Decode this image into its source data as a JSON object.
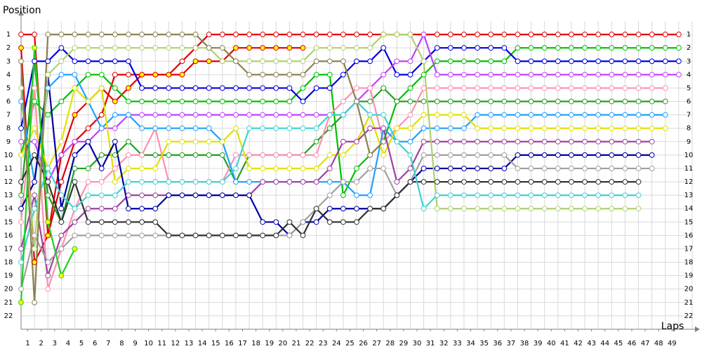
{
  "chart_data": {
    "type": "lap",
    "title": "Position",
    "x_label": "Laps",
    "xlim": [
      0,
      50
    ],
    "ylim": [
      23,
      0
    ],
    "grid": true,
    "x": [
      0,
      1,
      2,
      3,
      4,
      5,
      6,
      7,
      8,
      9,
      10,
      11,
      12,
      13,
      14,
      15,
      16,
      17,
      18,
      19,
      20,
      21,
      22,
      23,
      24,
      25,
      26,
      27,
      28,
      29,
      30,
      31,
      32,
      33,
      34,
      35,
      36,
      37,
      38,
      39,
      40,
      41,
      42,
      43,
      44,
      45,
      46,
      47,
      48,
      49
    ],
    "xticks": [
      {
        "value": 0.5,
        "label": "1"
      },
      {
        "value": 1.5,
        "label": "2"
      },
      {
        "value": 2.5,
        "label": "3"
      },
      {
        "value": 3.5,
        "label": "4"
      },
      {
        "value": 4.5,
        "label": "5"
      },
      {
        "value": 5.5,
        "label": "6"
      },
      {
        "value": 6.5,
        "label": "7"
      },
      {
        "value": 7.5,
        "label": "8"
      },
      {
        "value": 8.5,
        "label": "9"
      },
      {
        "value": 9.5,
        "label": "10"
      },
      {
        "value": 10.5,
        "label": "11"
      },
      {
        "value": 11.5,
        "label": "12"
      },
      {
        "value": 12.5,
        "label": "13"
      },
      {
        "value": 13.5,
        "label": "14"
      },
      {
        "value": 14.5,
        "label": "15"
      },
      {
        "value": 15.5,
        "label": "16"
      },
      {
        "value": 16.5,
        "label": "17"
      },
      {
        "value": 17.5,
        "label": "18"
      },
      {
        "value": 18.5,
        "label": "19"
      },
      {
        "value": 19.5,
        "label": "20"
      },
      {
        "value": 20.5,
        "label": "21"
      },
      {
        "value": 21.5,
        "label": "22"
      },
      {
        "value": 22.5,
        "label": "23"
      },
      {
        "value": 23.5,
        "label": "24"
      },
      {
        "value": 24.5,
        "label": "25"
      },
      {
        "value": 25.5,
        "label": "26"
      },
      {
        "value": 26.5,
        "label": "27"
      },
      {
        "value": 27.5,
        "label": "28"
      },
      {
        "value": 28.5,
        "label": "29"
      },
      {
        "value": 29.5,
        "label": "30"
      },
      {
        "value": 30.5,
        "label": "31"
      },
      {
        "value": 31.5,
        "label": "32"
      },
      {
        "value": 32.5,
        "label": "33"
      },
      {
        "value": 33.5,
        "label": "34"
      },
      {
        "value": 34.5,
        "label": "35"
      },
      {
        "value": 35.5,
        "label": "36"
      },
      {
        "value": 36.5,
        "label": "37"
      },
      {
        "value": 37.5,
        "label": "38"
      },
      {
        "value": 38.5,
        "label": "39"
      },
      {
        "value": 39.5,
        "label": "40"
      },
      {
        "value": 40.5,
        "label": "41"
      },
      {
        "value": 41.5,
        "label": "42"
      },
      {
        "value": 42.5,
        "label": "43"
      },
      {
        "value": 43.5,
        "label": "44"
      },
      {
        "value": 44.5,
        "label": "45"
      },
      {
        "value": 45.5,
        "label": "46"
      },
      {
        "value": 46.5,
        "label": "47"
      },
      {
        "value": 47.5,
        "label": "48"
      },
      {
        "value": 48.5,
        "label": "49"
      }
    ],
    "yticks": [
      1,
      2,
      3,
      4,
      5,
      6,
      7,
      8,
      9,
      10,
      11,
      12,
      13,
      14,
      15,
      16,
      17,
      18,
      19,
      20,
      21,
      22
    ],
    "series": [
      {
        "color": "#e00000",
        "marker_fill": "#ffffff",
        "values": [
          1,
          1,
          16,
          12,
          9,
          8,
          7,
          4,
          4,
          4,
          4,
          4,
          3,
          2,
          1,
          1,
          1,
          1,
          1,
          1,
          1,
          1,
          1,
          1,
          1,
          1,
          1,
          1,
          1,
          1,
          1,
          1,
          1,
          1,
          1,
          1,
          1,
          1,
          1,
          1,
          1,
          1,
          1,
          1,
          1,
          1,
          1,
          1,
          1,
          1
        ]
      },
      {
        "color": "#e00000",
        "marker_fill": "#ffff00",
        "values": [
          2,
          18,
          16,
          10,
          7,
          6,
          5,
          6,
          5,
          4,
          4,
          4,
          4,
          3,
          3,
          3,
          2,
          2,
          2,
          2,
          2,
          2,
          null,
          null,
          null,
          null,
          null,
          null,
          null,
          null,
          null,
          null,
          null,
          null,
          null,
          null,
          null,
          null,
          null,
          null,
          null,
          null,
          null,
          null,
          null,
          null,
          null,
          null,
          null,
          null
        ]
      },
      {
        "color": "#00c000",
        "marker_fill": "#ffffff",
        "values": [
          10,
          6,
          7,
          6,
          5,
          4,
          4,
          5,
          6,
          6,
          6,
          6,
          6,
          6,
          6,
          6,
          6,
          6,
          6,
          6,
          6,
          5,
          4,
          4,
          13,
          11,
          10,
          9,
          6,
          5,
          4,
          3,
          3,
          3,
          3,
          3,
          3,
          2,
          2,
          2,
          2,
          2,
          2,
          2,
          2,
          2,
          2,
          2,
          2,
          2
        ]
      },
      {
        "color": "#20a020",
        "marker_fill": "#ffffff",
        "values": [
          13,
          3,
          13,
          15,
          11,
          11,
          10,
          10,
          9,
          10,
          10,
          10,
          10,
          10,
          10,
          10,
          12,
          10,
          10,
          10,
          10,
          10,
          9,
          8,
          7,
          6,
          6,
          5,
          6,
          6,
          6,
          6,
          6,
          6,
          6,
          6,
          6,
          6,
          6,
          6,
          6,
          6,
          6,
          6,
          6,
          6,
          6,
          6,
          6,
          null
        ]
      },
      {
        "color": "#0000e0",
        "marker_fill": "#ffffff",
        "values": [
          8,
          3,
          3,
          2,
          3,
          3,
          3,
          3,
          3,
          5,
          5,
          5,
          5,
          5,
          5,
          5,
          5,
          5,
          5,
          5,
          5,
          6,
          5,
          5,
          4,
          3,
          3,
          2,
          4,
          4,
          3,
          2,
          2,
          2,
          2,
          2,
          2,
          3,
          3,
          3,
          3,
          3,
          3,
          3,
          3,
          3,
          3,
          3,
          3,
          3
        ]
      },
      {
        "color": "#c040ff",
        "marker_fill": "#ffffff",
        "values": [
          9,
          9,
          12,
          10,
          9,
          9,
          8,
          8,
          7,
          7,
          7,
          7,
          7,
          7,
          7,
          7,
          7,
          7,
          7,
          7,
          7,
          7,
          7,
          7,
          7,
          6,
          5,
          4,
          3,
          3,
          1,
          4,
          4,
          4,
          4,
          4,
          4,
          4,
          4,
          4,
          4,
          4,
          4,
          4,
          4,
          4,
          4,
          4,
          4,
          4
        ]
      },
      {
        "color": "#ff90b0",
        "marker_fill": "#ffffff",
        "values": [
          15,
          5,
          20,
          17,
          14,
          12,
          12,
          11,
          10,
          10,
          8,
          12,
          12,
          12,
          12,
          12,
          10,
          10,
          10,
          10,
          10,
          10,
          10,
          7,
          6,
          5,
          5,
          9,
          8,
          7,
          5,
          5,
          5,
          5,
          5,
          5,
          5,
          5,
          5,
          5,
          5,
          5,
          5,
          5,
          5,
          5,
          5,
          5,
          5,
          null
        ]
      },
      {
        "color": "#20a0ff",
        "marker_fill": "#ffffff",
        "values": [
          6,
          12,
          5,
          4,
          4,
          6,
          8,
          7,
          7,
          8,
          8,
          8,
          8,
          8,
          8,
          9,
          12,
          12,
          12,
          12,
          12,
          12,
          12,
          12,
          12,
          13,
          13,
          8,
          9,
          9,
          8,
          8,
          8,
          8,
          7,
          7,
          7,
          7,
          7,
          7,
          7,
          7,
          7,
          7,
          7,
          7,
          7,
          7,
          7,
          null
        ]
      },
      {
        "color": "#e0e000",
        "marker_fill": "#ffffff",
        "values": [
          10,
          8,
          11,
          9,
          5,
          6,
          5,
          12,
          11,
          11,
          11,
          9,
          9,
          9,
          9,
          9,
          8,
          11,
          11,
          11,
          11,
          11,
          11,
          10,
          10,
          9,
          7,
          10,
          8,
          8,
          7,
          7,
          7,
          7,
          8,
          8,
          8,
          8,
          8,
          8,
          8,
          8,
          8,
          8,
          8,
          8,
          8,
          8,
          8,
          null
        ]
      },
      {
        "color": "#a040a0",
        "marker_fill": "#ffffff",
        "values": [
          17,
          13,
          19,
          16,
          15,
          14,
          14,
          14,
          13,
          13,
          13,
          13,
          13,
          13,
          13,
          13,
          13,
          13,
          12,
          12,
          12,
          12,
          12,
          11,
          9,
          9,
          8,
          8,
          12,
          11,
          9,
          9,
          9,
          9,
          9,
          9,
          9,
          9,
          9,
          9,
          9,
          9,
          9,
          9,
          9,
          9,
          9,
          9,
          null,
          null
        ]
      },
      {
        "color": "#0000a0",
        "marker_fill": "#ffffff",
        "values": [
          14,
          12,
          4,
          14,
          10,
          9,
          11,
          9,
          14,
          14,
          14,
          13,
          13,
          13,
          13,
          13,
          13,
          13,
          15,
          15,
          16,
          15,
          15,
          14,
          14,
          14,
          14,
          14,
          13,
          12,
          11,
          11,
          11,
          11,
          11,
          11,
          11,
          10,
          10,
          10,
          10,
          10,
          10,
          10,
          10,
          10,
          10,
          10,
          null,
          null
        ]
      },
      {
        "color": "#a0a0a0",
        "marker_fill": "#ffffff",
        "values": [
          20,
          16,
          18,
          17,
          16,
          16,
          16,
          16,
          16,
          16,
          16,
          16,
          16,
          16,
          16,
          16,
          16,
          16,
          16,
          16,
          16,
          15,
          14,
          13,
          12,
          12,
          11,
          11,
          13,
          12,
          10,
          10,
          10,
          10,
          10,
          10,
          10,
          11,
          11,
          11,
          11,
          11,
          11,
          11,
          11,
          11,
          11,
          11,
          null,
          null
        ]
      },
      {
        "color": "#303030",
        "marker_fill": "#ffffff",
        "values": [
          12,
          10,
          12,
          15,
          12,
          15,
          15,
          15,
          15,
          15,
          15,
          16,
          16,
          16,
          16,
          16,
          16,
          16,
          16,
          16,
          15,
          16,
          14,
          15,
          15,
          15,
          14,
          14,
          13,
          12,
          12,
          12,
          12,
          12,
          12,
          12,
          12,
          12,
          12,
          12,
          12,
          12,
          12,
          12,
          12,
          12,
          12,
          null,
          null,
          null
        ]
      },
      {
        "color": "#40d0d0",
        "marker_fill": "#ffffff",
        "values": [
          18,
          14,
          11,
          13,
          14,
          13,
          13,
          13,
          12,
          12,
          12,
          12,
          12,
          12,
          12,
          12,
          11,
          8,
          8,
          8,
          8,
          8,
          8,
          7,
          7,
          6,
          7,
          7,
          9,
          10,
          14,
          13,
          13,
          13,
          13,
          13,
          13,
          13,
          13,
          13,
          13,
          13,
          13,
          13,
          13,
          13,
          13,
          null,
          null,
          null
        ]
      },
      {
        "color": "#b0d070",
        "marker_fill": "#ffffff",
        "values": [
          5,
          17,
          4,
          3,
          2,
          2,
          2,
          2,
          2,
          2,
          2,
          2,
          2,
          2,
          2,
          3,
          3,
          3,
          3,
          3,
          3,
          3,
          2,
          2,
          2,
          2,
          2,
          1,
          1,
          1,
          3,
          14,
          14,
          14,
          14,
          14,
          14,
          14,
          14,
          14,
          14,
          14,
          14,
          14,
          14,
          14,
          14,
          null,
          null,
          null
        ]
      },
      {
        "color": "#8b8050",
        "marker_fill": "#ffffff",
        "values": [
          3,
          21,
          1,
          1,
          1,
          1,
          1,
          1,
          1,
          1,
          1,
          1,
          1,
          1,
          2,
          2,
          3,
          4,
          4,
          4,
          4,
          4,
          3,
          3,
          3,
          6,
          10,
          9,
          null,
          null,
          null,
          null,
          null,
          null,
          null,
          null,
          null,
          null,
          null,
          null,
          null,
          null,
          null,
          null,
          null,
          null,
          null,
          null,
          null,
          null
        ]
      },
      {
        "color": "#20d020",
        "marker_fill": "#ffff00",
        "values": [
          21,
          2,
          15,
          19,
          17,
          null,
          null,
          null,
          null,
          null,
          null,
          null,
          null,
          null,
          null,
          null,
          null,
          null,
          null,
          null,
          null,
          null,
          null,
          null,
          null,
          null,
          null,
          null,
          null,
          null,
          null,
          null,
          null,
          null,
          null,
          null,
          null,
          null,
          null,
          null,
          null,
          null,
          null,
          null,
          null,
          null,
          null,
          null,
          null,
          null
        ]
      }
    ]
  }
}
